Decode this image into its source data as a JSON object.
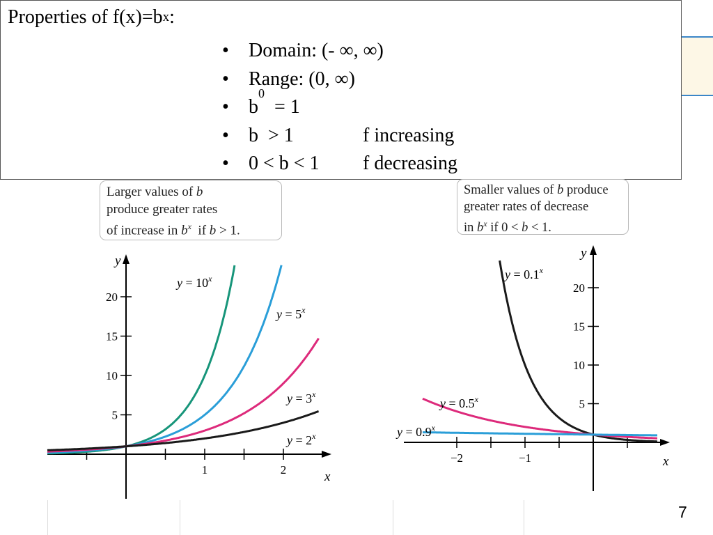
{
  "properties": {
    "title_prefix": "Properties of f(x)=b",
    "title_sup": "x",
    "title_suffix": ":",
    "items": [
      {
        "text": "Domain: (- ∞, ∞)",
        "desc": ""
      },
      {
        "text": "Range: (0, ∞)",
        "desc": ""
      },
      {
        "text": "b",
        "sup": "0",
        "after": "  = 1",
        "desc": ""
      },
      {
        "text": "b  > 1",
        "desc": "f increasing"
      },
      {
        "text": "0 < b < 1",
        "desc": "f decreasing"
      }
    ]
  },
  "callouts": {
    "left": {
      "line1_a": "Larger values of ",
      "line1_b": "b",
      "line2": "produce greater rates",
      "line3_a": "of increase in ",
      "line3_b": "b",
      "line3_sup": "x",
      "line3_c": "  if ",
      "line3_d": "b",
      "line3_e": " > 1."
    },
    "right": {
      "line1_a": "Smaller values of ",
      "line1_b": "b",
      "line1_c": " produce",
      "line2": "greater rates of decrease",
      "line3_a": "in ",
      "line3_b": "b",
      "line3_sup": "x",
      "line3_c": " if 0 < ",
      "line3_d": "b",
      "line3_e": " < 1."
    }
  },
  "page_number": "7",
  "chart_data": [
    {
      "type": "line",
      "xlabel": "x",
      "ylabel": "y",
      "xlim": [
        -1.0,
        2.5
      ],
      "ylim": [
        -1,
        25
      ],
      "x_ticks": [
        1,
        2
      ],
      "x_minor_ticks": [
        -0.5,
        0.5,
        1.5
      ],
      "y_ticks": [
        5,
        10,
        15,
        20
      ],
      "series": [
        {
          "name": "y = 10^x",
          "label_base": "y = 10",
          "label_sup": "x",
          "base": 10,
          "color": "#17957a"
        },
        {
          "name": "y = 5^x",
          "label_base": "y = 5",
          "label_sup": "x",
          "base": 5,
          "color": "#2a9ed8"
        },
        {
          "name": "y = 3^x",
          "label_base": "y = 3",
          "label_sup": "x",
          "base": 3,
          "color": "#dd2a7b"
        },
        {
          "name": "y = 2^x",
          "label_base": "y = 2",
          "label_sup": "x",
          "base": 2,
          "color": "#1a1a1a"
        }
      ]
    },
    {
      "type": "line",
      "xlabel": "x",
      "ylabel": "y",
      "xlim": [
        -2.5,
        1.0
      ],
      "ylim": [
        -1,
        25
      ],
      "x_ticks": [
        -2,
        -1
      ],
      "x_tick_labels": [
        "−2",
        "−1"
      ],
      "x_minor_ticks": [
        -1.5,
        -0.5,
        0.5
      ],
      "y_ticks": [
        5,
        10,
        15,
        20
      ],
      "series": [
        {
          "name": "y = 0.1^x",
          "label_base": "y = 0.1",
          "label_sup": "x",
          "base": 0.1,
          "color": "#1a1a1a"
        },
        {
          "name": "y = 0.5^x",
          "label_base": "y = 0.5",
          "label_sup": "x",
          "base": 0.5,
          "color": "#dd2a7b"
        },
        {
          "name": "y = 0.9^x",
          "label_base": "y = 0.9",
          "label_sup": "x",
          "base": 0.9,
          "color": "#2a9ed8"
        }
      ]
    }
  ]
}
